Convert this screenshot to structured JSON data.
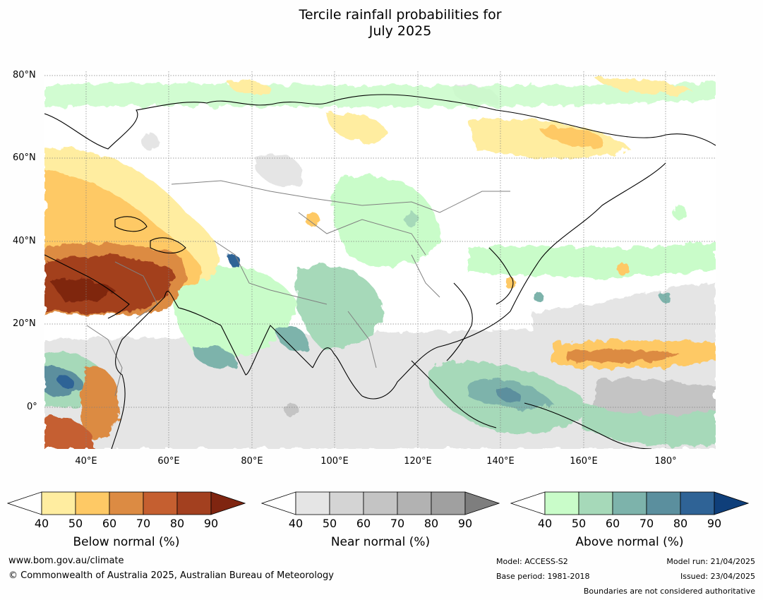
{
  "title": {
    "line1": "Tercile rainfall probabilities for",
    "line2": "July 2025"
  },
  "map": {
    "lat_labels": [
      "80°N",
      "60°N",
      "40°N",
      "20°N",
      "0°"
    ],
    "lon_labels": [
      "40°E",
      "60°E",
      "80°E",
      "100°E",
      "120°E",
      "140°E",
      "160°E",
      "180°"
    ],
    "background": "#ffffff",
    "graticule_color": "#808080",
    "coastline_color": "#000000",
    "border_color": "#808080"
  },
  "colorbars": [
    {
      "label": "Below normal (%)",
      "ticks": [
        "40",
        "50",
        "60",
        "70",
        "80",
        "90"
      ],
      "colors": [
        "#ffeda0",
        "#fec965",
        "#dc8b43",
        "#c55f30",
        "#a3401f",
        "#7f2510"
      ]
    },
    {
      "label": "Near normal (%)",
      "ticks": [
        "40",
        "50",
        "60",
        "70",
        "80",
        "90"
      ],
      "colors": [
        "#e5e5e5",
        "#d4d4d4",
        "#c4c4c4",
        "#b2b2b2",
        "#a0a0a0",
        "#7e7e7e"
      ]
    },
    {
      "label": "Above normal (%)",
      "ticks": [
        "40",
        "50",
        "60",
        "70",
        "80",
        "90"
      ],
      "colors": [
        "#c9fcc9",
        "#a6d9b9",
        "#7db3ab",
        "#5b8f9e",
        "#2f6396",
        "#0f3f7a"
      ]
    }
  ],
  "footer": {
    "url": "www.bom.gov.au/climate",
    "copyright": "© Commonwealth of Australia 2025, Australian Bureau of Meteorology",
    "model": "Model: ACCESS-S2",
    "base_period": "Base period: 1981-2018",
    "model_run": "Model run: 21/04/2025",
    "issued": "Issued: 23/04/2025",
    "disclaimer": "Boundaries are not considered authoritative"
  }
}
